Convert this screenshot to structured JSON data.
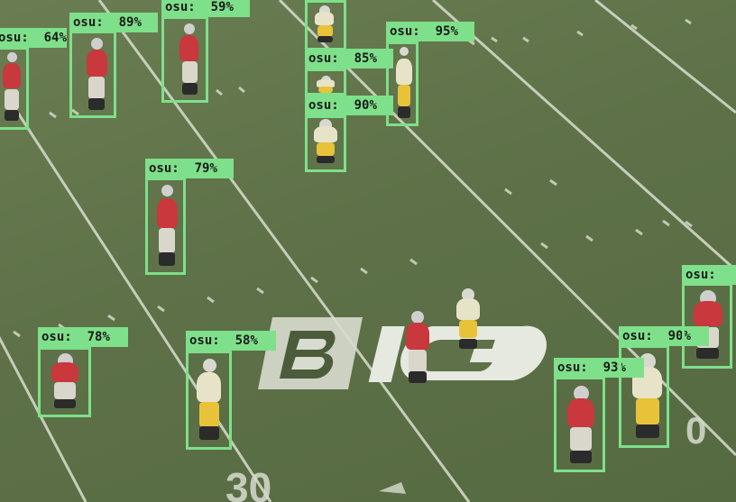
{
  "detections": [
    {
      "label": "osu",
      "score": "64%"
    },
    {
      "label": "osu",
      "score": "89%"
    },
    {
      "label": "osu",
      "score": "59%"
    },
    {
      "label": "osu",
      "score": "85%"
    },
    {
      "label": "osu",
      "score": "90%"
    },
    {
      "label": "osu",
      "score": "95%"
    },
    {
      "label": "osu",
      "score": "79%"
    },
    {
      "label": "osu",
      "score": "78%"
    },
    {
      "label": "osu",
      "score": "58%"
    },
    {
      "label": "osu",
      "score": "93%"
    },
    {
      "label": "osu",
      "score": "90%"
    },
    {
      "label": "osu",
      "score": ""
    }
  ],
  "field_marks": {
    "logo": "BIG",
    "yard_number_left": "30",
    "yard_number_right": "0"
  },
  "colors": {
    "box": "#7ee08a",
    "turf": "#5e7148",
    "osu_jersey": "#c8383c",
    "opponent_jersey": "#e7e3c8",
    "opponent_pants": "#e8c33a"
  }
}
